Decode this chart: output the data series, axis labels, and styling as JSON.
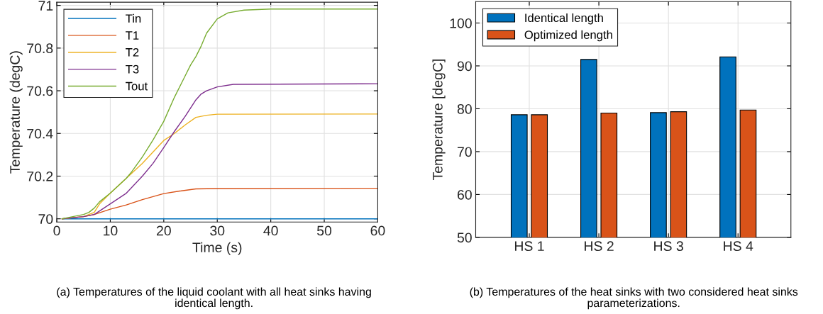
{
  "chart_data": [
    {
      "type": "line",
      "xlabel": "Time (s)",
      "ylabel": "Temperature (degC)",
      "xlim": [
        0,
        60
      ],
      "ylim": [
        69.985,
        71.015
      ],
      "xticks": [
        0,
        10,
        20,
        30,
        40,
        50,
        60
      ],
      "yticks": [
        {
          "value": 70,
          "label": "70"
        },
        70.2,
        70.4,
        70.6,
        70.8,
        {
          "value": 71,
          "label": "71"
        }
      ],
      "grid": true,
      "legend": "top left",
      "marker": "none",
      "line_style": "solid",
      "annotations": [
        "(a) Temperatures of the liquid coolant with all heat sinks having\nidentical length."
      ],
      "series": [
        {
          "name": "Tin",
          "color": "#0072bd",
          "x": [
            1,
            60
          ],
          "values": [
            70,
            70
          ]
        },
        {
          "name": "T1",
          "color": "#d95319",
          "x": [
            1,
            5,
            7,
            10,
            13,
            16,
            20,
            23,
            26,
            30,
            60
          ],
          "values": [
            70,
            70.01,
            70.02,
            70.045,
            70.065,
            70.09,
            70.118,
            70.13,
            70.14,
            70.142,
            70.143
          ]
        },
        {
          "name": "T2",
          "color": "#edb120",
          "x": [
            1,
            5,
            6,
            7,
            8,
            10,
            13,
            16,
            20,
            22,
            24,
            26,
            28,
            30,
            60
          ],
          "values": [
            70,
            70.01,
            70.02,
            70.03,
            70.07,
            70.12,
            70.19,
            70.26,
            70.367,
            70.4,
            70.44,
            70.475,
            70.485,
            70.49,
            70.491
          ]
        },
        {
          "name": "T3",
          "color": "#7e2f8e",
          "x": [
            1,
            5,
            7,
            10,
            13,
            16,
            18,
            20,
            22,
            24,
            26,
            27,
            28,
            30,
            33,
            60
          ],
          "values": [
            70,
            70.01,
            70.02,
            70.07,
            70.12,
            70.2,
            70.26,
            70.334,
            70.41,
            70.48,
            70.557,
            70.585,
            70.6,
            70.618,
            70.63,
            70.633
          ]
        },
        {
          "name": "Tout",
          "color": "#77ac30",
          "x": [
            1,
            3,
            5,
            6,
            7,
            8,
            10,
            13,
            14,
            16,
            18,
            20,
            22,
            24,
            25,
            26,
            27,
            28,
            30,
            32,
            35,
            40,
            60
          ],
          "values": [
            70,
            70.01,
            70.02,
            70.03,
            70.05,
            70.08,
            70.12,
            70.19,
            70.22,
            70.29,
            70.37,
            70.457,
            70.57,
            70.67,
            70.72,
            70.76,
            70.81,
            70.87,
            70.937,
            70.965,
            70.978,
            70.983,
            70.983
          ]
        }
      ]
    },
    {
      "type": "bar",
      "ylabel": "Temperature [degC]",
      "categories": [
        "HS 1",
        "HS 2",
        "HS 3",
        "HS 4"
      ],
      "ylim": [
        50,
        105
      ],
      "yticks": [
        50,
        60,
        70,
        80,
        90,
        100
      ],
      "grid": true,
      "legend": "top left",
      "annotations": [
        "(b) Temperatures of the heat sinks with two considered heat sinks\nparameterizations."
      ],
      "series": [
        {
          "name": "Identical length",
          "color": "#0072bd",
          "values": [
            78.6,
            91.5,
            79.1,
            92.1
          ]
        },
        {
          "name": "Optimized length",
          "color": "#d95319",
          "values": [
            78.6,
            79.0,
            79.3,
            79.7
          ]
        }
      ]
    }
  ]
}
